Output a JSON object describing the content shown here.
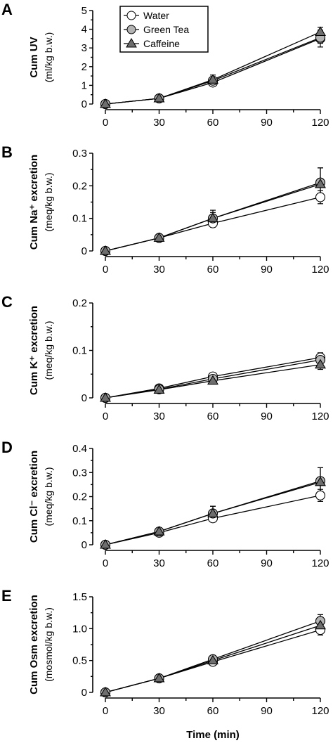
{
  "x_axis_label": "Time (min)",
  "legend": [
    "Water",
    "Green Tea",
    "Caffeine"
  ],
  "series_styles": {
    "Water": {
      "marker": "circle",
      "fill": "#ffffff"
    },
    "Green Tea": {
      "marker": "circle",
      "fill": "#b3b3b3"
    },
    "Caffeine": {
      "marker": "triangle",
      "fill": "#6e6e6e"
    }
  },
  "chart_data": [
    {
      "panel": "A",
      "type": "line",
      "ylabel_main": "Cum UV",
      "ylabel_unit": "(ml/kg b.w.)",
      "x": [
        0,
        30,
        60,
        120
      ],
      "xticks": [
        "0",
        "30",
        "60",
        "90",
        "120"
      ],
      "xlim": [
        0,
        120
      ],
      "ylim": [
        0,
        5
      ],
      "yticks": [
        "0",
        "1",
        "2",
        "3",
        "4",
        "5"
      ],
      "series": [
        {
          "name": "Water",
          "values": [
            0.0,
            0.3,
            1.15,
            3.5
          ],
          "err": [
            0.05,
            0.08,
            0.15,
            0.45
          ]
        },
        {
          "name": "Green Tea",
          "values": [
            0.0,
            0.3,
            1.25,
            3.55
          ],
          "err": [
            0.05,
            0.08,
            0.2,
            0.3
          ]
        },
        {
          "name": "Caffeine",
          "values": [
            0.0,
            0.3,
            1.3,
            3.85
          ],
          "err": [
            0.05,
            0.08,
            0.25,
            0.25
          ]
        }
      ]
    },
    {
      "panel": "B",
      "type": "line",
      "ylabel_main": "Cum Na⁺ excretion",
      "ylabel_unit": "(meq/kg b.w.)",
      "x": [
        0,
        30,
        60,
        120
      ],
      "xticks": [
        "0",
        "30",
        "60",
        "90",
        "120"
      ],
      "xlim": [
        0,
        120
      ],
      "ylim": [
        0,
        0.3
      ],
      "yticks": [
        "0",
        "0.1",
        "0.2",
        "0.3"
      ],
      "series": [
        {
          "name": "Water",
          "values": [
            0.0,
            0.04,
            0.085,
            0.165
          ],
          "err": [
            0.003,
            0.004,
            0.012,
            0.02
          ]
        },
        {
          "name": "Green Tea",
          "values": [
            0.0,
            0.04,
            0.1,
            0.21
          ],
          "err": [
            0.003,
            0.004,
            0.018,
            0.045
          ]
        },
        {
          "name": "Caffeine",
          "values": [
            0.0,
            0.04,
            0.1,
            0.205
          ],
          "err": [
            0.003,
            0.004,
            0.025,
            0.05
          ]
        }
      ]
    },
    {
      "panel": "C",
      "type": "line",
      "ylabel_main": "Cum K⁺ excretion",
      "ylabel_unit": "(meq/kg b.w.)",
      "x": [
        0,
        30,
        60,
        120
      ],
      "xticks": [
        "0",
        "30",
        "60",
        "90",
        "120"
      ],
      "xlim": [
        0,
        120
      ],
      "ylim": [
        0,
        0.2
      ],
      "yticks": [
        "0",
        "0.1",
        "0.2"
      ],
      "series": [
        {
          "name": "Water",
          "values": [
            0.0,
            0.02,
            0.045,
            0.085
          ],
          "err": [
            0.002,
            0.003,
            0.004,
            0.01
          ]
        },
        {
          "name": "Green Tea",
          "values": [
            0.0,
            0.018,
            0.04,
            0.08
          ],
          "err": [
            0.002,
            0.003,
            0.004,
            0.01
          ]
        },
        {
          "name": "Caffeine",
          "values": [
            0.0,
            0.017,
            0.036,
            0.07
          ],
          "err": [
            0.002,
            0.003,
            0.004,
            0.01
          ]
        }
      ]
    },
    {
      "panel": "D",
      "type": "line",
      "ylabel_main": "Cum Cl⁻ excretion",
      "ylabel_unit": "(meq/kg b.w.)",
      "x": [
        0,
        30,
        60,
        120
      ],
      "xticks": [
        "0",
        "30",
        "60",
        "90",
        "120"
      ],
      "xlim": [
        0,
        120
      ],
      "ylim": [
        0,
        0.4
      ],
      "yticks": [
        "0",
        "0.1",
        "0.2",
        "0.3",
        "0.4"
      ],
      "series": [
        {
          "name": "Water",
          "values": [
            0.0,
            0.05,
            0.11,
            0.205
          ],
          "err": [
            0.005,
            0.008,
            0.015,
            0.025
          ]
        },
        {
          "name": "Green Tea",
          "values": [
            0.0,
            0.055,
            0.13,
            0.265
          ],
          "err": [
            0.005,
            0.01,
            0.03,
            0.055
          ]
        },
        {
          "name": "Caffeine",
          "values": [
            0.0,
            0.055,
            0.13,
            0.26
          ],
          "err": [
            0.005,
            0.01,
            0.03,
            0.06
          ]
        }
      ]
    },
    {
      "panel": "E",
      "type": "line",
      "ylabel_main": "Cum Osm excretion",
      "ylabel_unit": "(mosmol/kg b.w.)",
      "x": [
        0,
        30,
        60,
        120
      ],
      "xticks": [
        "0",
        "30",
        "60",
        "90",
        "120"
      ],
      "xlim": [
        0,
        120
      ],
      "ylim": [
        0,
        1.5
      ],
      "yticks": [
        "0",
        "0.5",
        "1.0",
        "1.5"
      ],
      "series": [
        {
          "name": "Water",
          "values": [
            0.0,
            0.22,
            0.48,
            0.98
          ],
          "err": [
            0.01,
            0.03,
            0.04,
            0.08
          ]
        },
        {
          "name": "Green Tea",
          "values": [
            0.0,
            0.22,
            0.52,
            1.12
          ],
          "err": [
            0.01,
            0.03,
            0.05,
            0.1
          ]
        },
        {
          "name": "Caffeine",
          "values": [
            0.0,
            0.22,
            0.5,
            1.05
          ],
          "err": [
            0.01,
            0.03,
            0.05,
            0.08
          ]
        }
      ]
    }
  ]
}
